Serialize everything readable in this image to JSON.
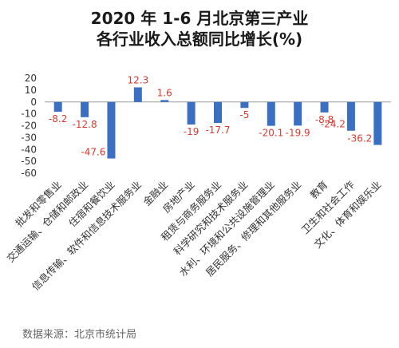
{
  "title_lines": [
    "2020 年 1-6 月北京第三产业",
    "各行业收入总额同比增长(%)"
  ],
  "source": "数据来源：北京市统计局",
  "colors": {
    "bar": "#3b6fc2",
    "label": "#d93a2f",
    "axis": "#999999",
    "text": "#333333"
  },
  "chart_data": {
    "type": "bar",
    "title": "2020 年 1-6 月北京第三产业各行业收入总额同比增长(%)",
    "xlabel": "",
    "ylabel": "",
    "ylim": [
      -60,
      20
    ],
    "yticks": [
      20,
      10,
      0,
      -10,
      -20,
      -30,
      -40,
      -50,
      -60
    ],
    "grid": false,
    "categories": [
      "批发和零售业",
      "交通运输、仓储和邮政业",
      "住宿和餐饮业",
      "信息传输、软件和信息技术服务业",
      "金融业",
      "房地产业",
      "租赁与商务服务业",
      "科学研究和技术服务业",
      "水利、环境和公共设施管理业",
      "居民服务、修理和其他服务业",
      "教育",
      "卫生和社会工作",
      "文化、体育和娱乐业"
    ],
    "values": [
      -8.2,
      -12.8,
      -47.6,
      12.3,
      1.6,
      -19,
      -17.7,
      -5,
      -20.1,
      -19.9,
      -8.8,
      -24.2,
      -36.2
    ],
    "value_labels": [
      "-8.2",
      "-12.8",
      "-47.6",
      "12.3",
      "1.6",
      "-19",
      "-17.7",
      "-5",
      "-20.1",
      "-19.9",
      "-8.8",
      "-24.2",
      "-36.2"
    ]
  }
}
